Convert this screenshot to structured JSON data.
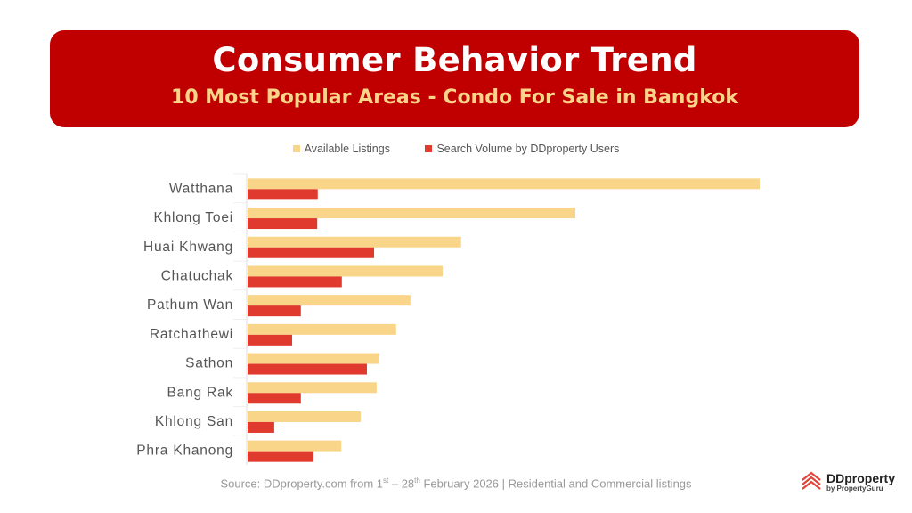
{
  "header": {
    "title": "Consumer Behavior Trend",
    "subtitle": "10 Most Popular Areas - Condo For Sale in Bangkok"
  },
  "chart_data": {
    "type": "bar",
    "orientation": "horizontal",
    "categories": [
      "Watthana",
      "Khlong Toei",
      "Huai Khwang",
      "Chatuchak",
      "Pathum Wan",
      "Ratchathewi",
      "Sathon",
      "Bang Rak",
      "Khlong San",
      "Phra Khanong"
    ],
    "series": [
      {
        "name": "Available Listings",
        "color": "#f9d58a",
        "values": [
          100,
          64,
          41.7,
          38.1,
          31.8,
          29.0,
          25.7,
          25.2,
          22.1,
          18.3
        ]
      },
      {
        "name": "Search Volume by DDproperty Users",
        "color": "#e03a2e",
        "values": [
          13.7,
          13.6,
          24.7,
          18.4,
          10.4,
          8.7,
          23.3,
          10.4,
          5.2,
          12.9
        ]
      }
    ],
    "xlim": [
      0,
      100
    ],
    "grid": false,
    "legend": "top",
    "axis_labels_shown": false
  },
  "source": {
    "prefix": "Source: DDproperty.com from 1",
    "sup1": "st",
    "mid": "  – 28",
    "sup2": "th",
    "suffix": " February 2026 | Residential and Commercial listings"
  },
  "logo": {
    "name": "DDproperty",
    "sub": "by PropertyGuru"
  }
}
